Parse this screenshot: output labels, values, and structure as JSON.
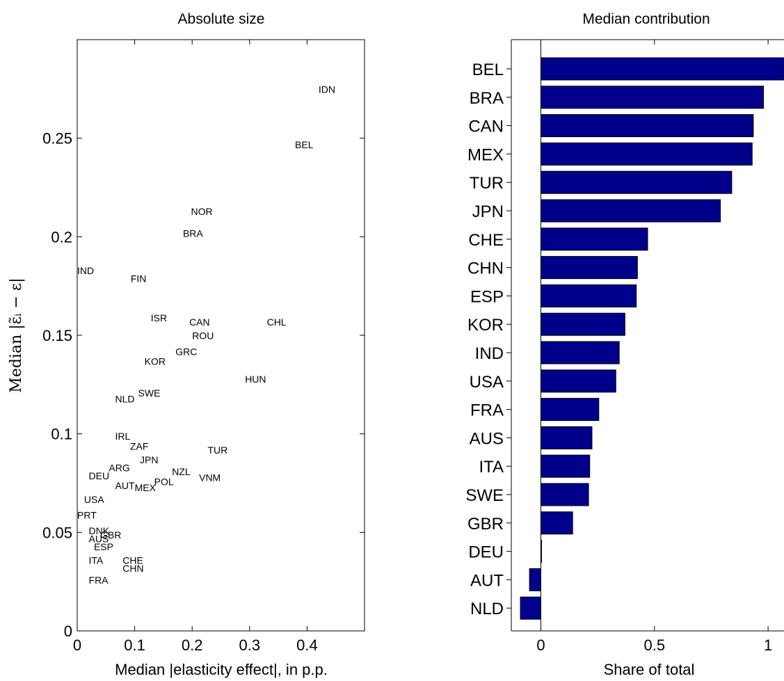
{
  "chart_data": [
    {
      "type": "scatter",
      "title": "Absolute size",
      "xlabel": "Median |elasticity effect|, in p.p.",
      "ylabel": "Median |ε̃ᵢ − ε|",
      "xlim": [
        0,
        0.5
      ],
      "ylim": [
        0,
        0.3
      ],
      "xticks": [
        0,
        0.1,
        0.2,
        0.3,
        0.4
      ],
      "xtick_labels": [
        "0",
        "0.1",
        "0.2",
        "0.3",
        "0.4"
      ],
      "yticks": [
        0,
        0.05,
        0.1,
        0.15,
        0.2,
        0.25
      ],
      "ytick_labels": [
        "0",
        "0.05",
        "0.1",
        "0.15",
        "0.2",
        "0.25"
      ],
      "grid": false,
      "points": [
        {
          "label": "IDN",
          "x": 0.42,
          "y": 0.273
        },
        {
          "label": "BEL",
          "x": 0.379,
          "y": 0.245
        },
        {
          "label": "NOR",
          "x": 0.198,
          "y": 0.211
        },
        {
          "label": "BRA",
          "x": 0.184,
          "y": 0.2
        },
        {
          "label": "IND",
          "x": 0.0,
          "y": 0.181
        },
        {
          "label": "FIN",
          "x": 0.093,
          "y": 0.177
        },
        {
          "label": "ISR",
          "x": 0.128,
          "y": 0.157
        },
        {
          "label": "CAN",
          "x": 0.195,
          "y": 0.155
        },
        {
          "label": "CHL",
          "x": 0.33,
          "y": 0.155
        },
        {
          "label": "ROU",
          "x": 0.2,
          "y": 0.148
        },
        {
          "label": "GRC",
          "x": 0.171,
          "y": 0.14
        },
        {
          "label": "KOR",
          "x": 0.117,
          "y": 0.135
        },
        {
          "label": "HUN",
          "x": 0.292,
          "y": 0.126
        },
        {
          "label": "NLD",
          "x": 0.066,
          "y": 0.116
        },
        {
          "label": "SWE",
          "x": 0.106,
          "y": 0.119
        },
        {
          "label": "IRL",
          "x": 0.066,
          "y": 0.097
        },
        {
          "label": "ZAF",
          "x": 0.092,
          "y": 0.092
        },
        {
          "label": "TUR",
          "x": 0.227,
          "y": 0.09
        },
        {
          "label": "JPN",
          "x": 0.109,
          "y": 0.085
        },
        {
          "label": "ARG",
          "x": 0.055,
          "y": 0.081
        },
        {
          "label": "NZL",
          "x": 0.165,
          "y": 0.079
        },
        {
          "label": "DEU",
          "x": 0.02,
          "y": 0.077
        },
        {
          "label": "VNM",
          "x": 0.212,
          "y": 0.076
        },
        {
          "label": "POL",
          "x": 0.134,
          "y": 0.074
        },
        {
          "label": "AUT",
          "x": 0.066,
          "y": 0.072
        },
        {
          "label": "MEX",
          "x": 0.1,
          "y": 0.071
        },
        {
          "label": "USA",
          "x": 0.012,
          "y": 0.065
        },
        {
          "label": "PRT",
          "x": 0.0,
          "y": 0.057
        },
        {
          "label": "DNK",
          "x": 0.02,
          "y": 0.049
        },
        {
          "label": "GBR",
          "x": 0.04,
          "y": 0.047
        },
        {
          "label": "AUS",
          "x": 0.02,
          "y": 0.045
        },
        {
          "label": "ESP",
          "x": 0.029,
          "y": 0.041
        },
        {
          "label": "ITA",
          "x": 0.02,
          "y": 0.034
        },
        {
          "label": "CHE",
          "x": 0.079,
          "y": 0.034
        },
        {
          "label": "CHN",
          "x": 0.079,
          "y": 0.03
        },
        {
          "label": "FRA",
          "x": 0.02,
          "y": 0.024
        }
      ]
    },
    {
      "type": "bar",
      "orientation": "horizontal",
      "title": "Median contribution",
      "xlabel": "Share of total",
      "xlim": [
        -0.13,
        1.07
      ],
      "xticks": [
        0,
        0.5,
        1
      ],
      "xtick_labels": [
        "0",
        "0.5",
        "1"
      ],
      "grid": false,
      "bar_color": "#00008B",
      "categories": [
        "BEL",
        "BRA",
        "CAN",
        "MEX",
        "TUR",
        "JPN",
        "CHE",
        "CHN",
        "ESP",
        "KOR",
        "IND",
        "USA",
        "FRA",
        "AUS",
        "ITA",
        "SWE",
        "GBR",
        "DEU",
        "AUT",
        "NLD"
      ],
      "values": [
        1.07,
        0.98,
        0.935,
        0.93,
        0.84,
        0.79,
        0.47,
        0.425,
        0.42,
        0.37,
        0.345,
        0.33,
        0.255,
        0.225,
        0.215,
        0.21,
        0.14,
        0.003,
        -0.05,
        -0.09
      ]
    }
  ]
}
